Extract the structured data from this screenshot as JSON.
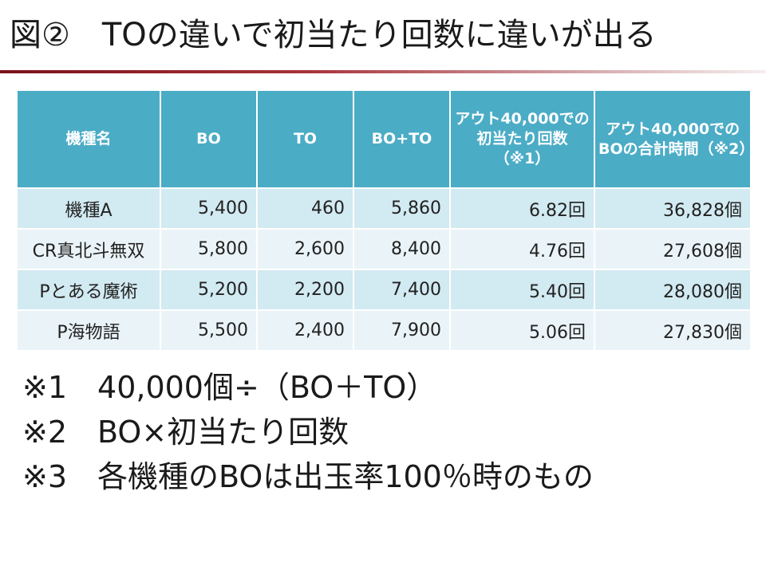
{
  "slide": {
    "title": "図②　TOの違いで初当たり回数に違いが出る"
  },
  "table": {
    "headers": [
      "機種名",
      "BO",
      "TO",
      "BO+TO",
      "アウト40,000での初当たり回数（※1）",
      "アウト40,000でのBOの合計時間（※2）"
    ],
    "rows": [
      [
        "機種A",
        "5,400",
        "460",
        "5,860",
        "6.82回",
        "36,828個"
      ],
      [
        "CR真北斗無双",
        "5,800",
        "2,600",
        "8,400",
        "4.76回",
        "27,608個"
      ],
      [
        "Pとある魔術",
        "5,200",
        "2,200",
        "7,400",
        "5.40回",
        "28,080個"
      ],
      [
        "P海物語",
        "5,500",
        "2,400",
        "7,900",
        "5.06回",
        "27,830個"
      ]
    ]
  },
  "notes": [
    "※1　40,000個÷（BO＋TO）",
    "※2　BO×初当たり回数",
    "※3　各機種のBOは出玉率100％時のもの"
  ],
  "colors": {
    "header_bg": "#4bacc6",
    "row_odd": "#d2eaf1",
    "row_even": "#eaf4f8",
    "title_rule": "#7a1219"
  }
}
